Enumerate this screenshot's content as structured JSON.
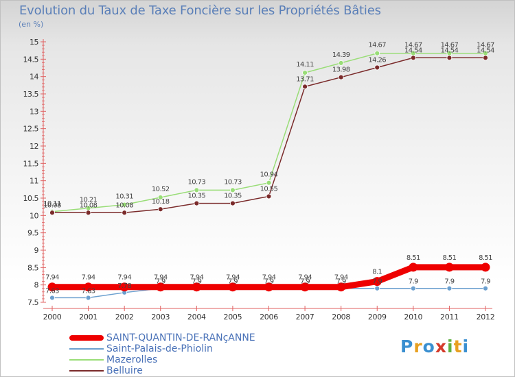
{
  "chart_data": {
    "type": "line",
    "title": "Evolution du Taux de Taxe Foncière sur les Propriétés Bâties",
    "unit_label": "(en %)",
    "xlabel": "",
    "ylabel": "",
    "categories": [
      "2000",
      "2001",
      "2002",
      "2003",
      "2004",
      "2005",
      "2006",
      "2007",
      "2008",
      "2009",
      "2010",
      "2011",
      "2012"
    ],
    "ylim": [
      7.5,
      15
    ],
    "yticks": [
      "7.5",
      "8",
      "8.5",
      "9",
      "9.5",
      "10",
      "10.5",
      "11",
      "11.5",
      "12",
      "12.5",
      "13",
      "13.5",
      "14",
      "14.5",
      "15"
    ],
    "grid": false,
    "legend_position": "bottom-left",
    "series": [
      {
        "name": "SAINT-QUANTIN-DE-RANçANNE",
        "color": "#ee0000",
        "values": [
          7.94,
          7.94,
          7.94,
          7.94,
          7.94,
          7.94,
          7.94,
          7.94,
          7.94,
          8.1,
          8.51,
          8.51,
          8.51
        ],
        "labels": [
          "7.94",
          "7.94",
          "7.94",
          "7.94",
          "7.94",
          "7.94",
          "7.94",
          "7.94",
          "7.94",
          "8.1",
          "8.51",
          "8.51",
          "8.51"
        ]
      },
      {
        "name": "Saint-Palais-de-Phiolin",
        "color": "#6a9fcf",
        "values": [
          7.63,
          7.63,
          7.78,
          7.9,
          7.9,
          7.9,
          7.9,
          7.9,
          7.9,
          7.9,
          7.9,
          7.9,
          7.9
        ],
        "labels": [
          "7.63",
          "7.63",
          "7.78",
          "7.9",
          "7.9",
          "7.9",
          "7.9",
          "7.9",
          "7.9",
          "7.9",
          "7.9",
          "7.9",
          "7.9"
        ]
      },
      {
        "name": "Mazerolles",
        "color": "#99dd77",
        "values": [
          10.11,
          10.21,
          10.31,
          10.52,
          10.73,
          10.73,
          10.94,
          14.11,
          14.39,
          14.67,
          14.67,
          14.67,
          14.67
        ],
        "labels": [
          "10.11",
          "10.21",
          "10.31",
          "10.52",
          "10.73",
          "10.73",
          "10.94",
          "14.11",
          "14.39",
          "14.67",
          "14.67",
          "14.67",
          "14.67"
        ]
      },
      {
        "name": "Belluire",
        "color": "#7a2a2a",
        "values": [
          10.08,
          10.08,
          10.08,
          10.18,
          10.35,
          10.35,
          10.55,
          13.71,
          13.98,
          14.26,
          14.54,
          14.54,
          14.54
        ],
        "labels": [
          "10.08",
          "10.08",
          "10.08",
          "10.18",
          "10.35",
          "10.35",
          "10.55",
          "13.71",
          "13.98",
          "14.26",
          "14.54",
          "14.54",
          "14.54"
        ]
      }
    ]
  },
  "legend": {
    "items": [
      "SAINT-QUANTIN-DE-RANçANNE",
      "Saint-Palais-de-Phiolin",
      "Mazerolles",
      "Belluire"
    ]
  },
  "logo": {
    "text": "Proxiti",
    "letters": [
      {
        "ch": "P",
        "color": "#3a8fd0"
      },
      {
        "ch": "r",
        "color": "#e8a020"
      },
      {
        "ch": "o",
        "color": "#3a8fd0"
      },
      {
        "ch": "x",
        "color": "#d43a2a"
      },
      {
        "ch": "i",
        "color": "#60b040"
      },
      {
        "ch": "t",
        "color": "#e8a020"
      },
      {
        "ch": "i",
        "color": "#3a8fd0"
      }
    ]
  }
}
